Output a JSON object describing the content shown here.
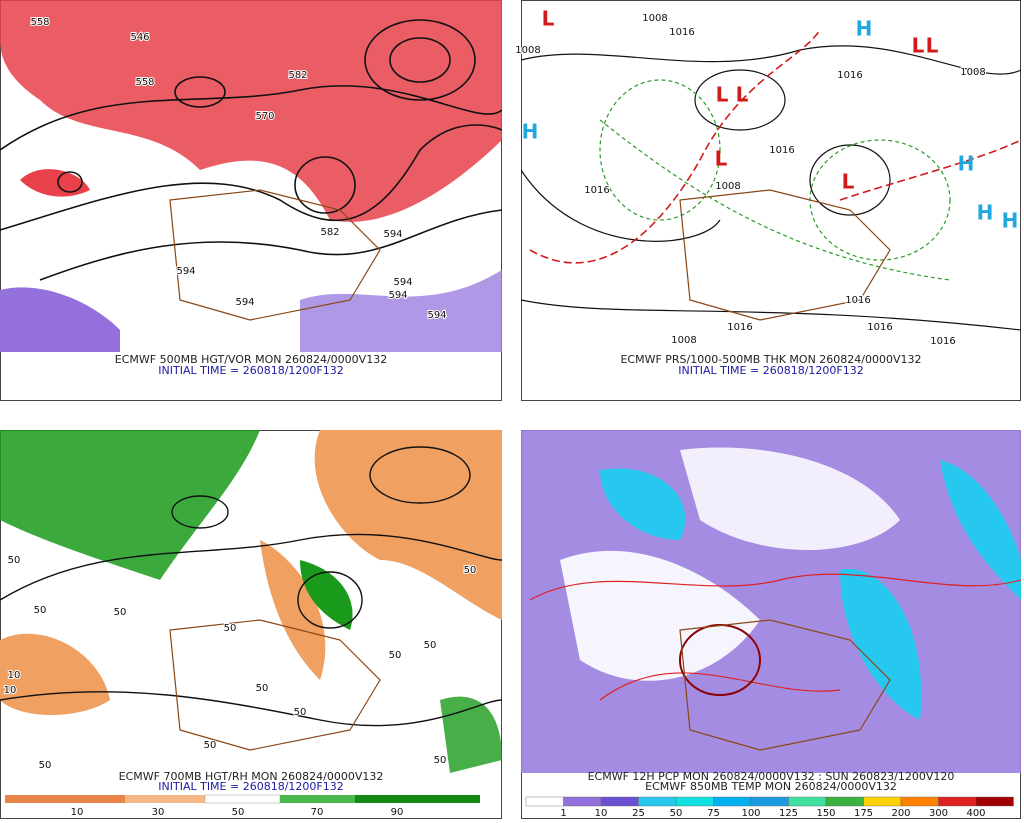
{
  "panels": [
    {
      "caption": "ECMWF 500MB HGT/VOR MON 260824/0000V132",
      "initial_time": "INITIAL TIME = 260818/1200F132",
      "contour_labels": [
        "546",
        "558",
        "558",
        "570",
        "582",
        "582",
        "594",
        "594",
        "594",
        "594",
        "594",
        "594"
      ]
    },
    {
      "caption": "ECMWF PRS/1000-500MB THK MON 260824/0000V132",
      "initial_time": "INITIAL TIME = 260818/1200F132",
      "contour_labels": [
        "1008",
        "1016",
        "1008",
        "1008",
        "1016",
        "1016",
        "1016",
        "1008",
        "1016",
        "1008",
        "1016",
        "1016",
        "1016"
      ],
      "pressure_centers": [
        "L",
        "L",
        "L",
        "L",
        "L",
        "L",
        "L",
        "H",
        "H",
        "H",
        "H",
        "H"
      ]
    },
    {
      "caption": "ECMWF 700MB HGT/RH MON 260824/0000V132",
      "initial_time": "INITIAL TIME = 260818/1200F132",
      "contour_labels": [
        "50",
        "50",
        "50",
        "50",
        "50",
        "50",
        "50",
        "50",
        "50",
        "50",
        "10",
        "10",
        "50",
        "50"
      ],
      "colorbar": [
        "10",
        "30",
        "50",
        "70",
        "90"
      ]
    },
    {
      "caption": "ECMWF 12H PCP MON 260824/0000V132 : SUN 260823/1200V120",
      "caption2": "ECMWF 850MB TEMP MON 260824/0000V132",
      "colorbar": [
        "1",
        "10",
        "25",
        "50",
        "75",
        "100",
        "125",
        "150",
        "175",
        "200",
        "300",
        "400"
      ]
    }
  ]
}
